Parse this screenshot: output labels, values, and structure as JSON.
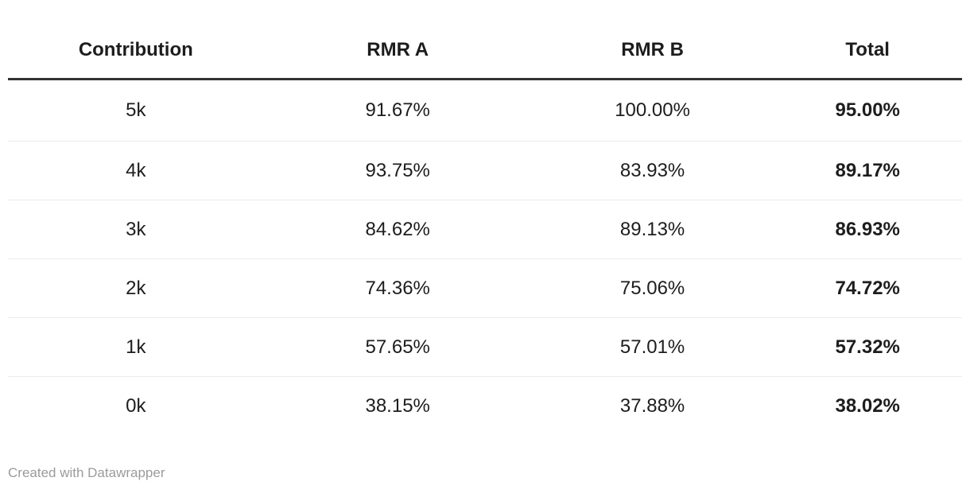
{
  "chart_data": {
    "type": "table",
    "columns": [
      "Contribution",
      "RMR A",
      "RMR B",
      "Total"
    ],
    "rows": [
      [
        "5k",
        "91.67%",
        "100.00%",
        "95.00%"
      ],
      [
        "4k",
        "93.75%",
        "83.93%",
        "89.17%"
      ],
      [
        "3k",
        "84.62%",
        "89.13%",
        "86.93%"
      ],
      [
        "2k",
        "74.36%",
        "75.06%",
        "74.72%"
      ],
      [
        "1k",
        "57.65%",
        "57.01%",
        "57.32%"
      ],
      [
        "0k",
        "38.15%",
        "37.88%",
        "38.02%"
      ]
    ],
    "bold_columns": [
      "Total"
    ],
    "layout_hints": {
      "alignment": "center",
      "header_rule": "thick-dark",
      "row_separators": "light-gray",
      "grid_vertical": "off"
    }
  },
  "footer": {
    "attribution": "Created with Datawrapper"
  },
  "colors": {
    "background": "#ffffff",
    "text": "#1d1d1d",
    "header_rule": "#333333",
    "row_separator": "#ebebeb",
    "attribution_text": "#9b9b9b"
  }
}
